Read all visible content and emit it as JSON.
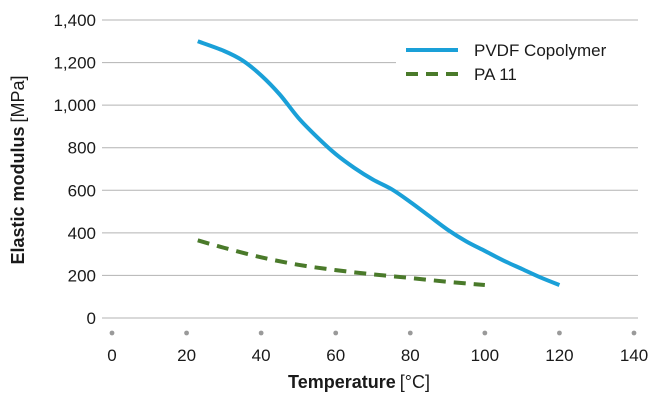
{
  "chart_data": {
    "type": "line",
    "xlabel_main": "Temperature",
    "xlabel_unit": "[°C]",
    "ylabel_main": "Elastic modulus",
    "ylabel_unit": "[MPa]",
    "xlim": [
      0,
      140
    ],
    "ylim": [
      0,
      1400
    ],
    "x_ticks": [
      0,
      20,
      40,
      60,
      80,
      100,
      120,
      140
    ],
    "x_tick_labels": [
      "0",
      "20",
      "40",
      "60",
      "80",
      "100",
      "120",
      "140"
    ],
    "y_ticks": [
      0,
      200,
      400,
      600,
      800,
      1000,
      1200,
      1400
    ],
    "y_tick_labels": [
      "0",
      "200",
      "400",
      "600",
      "800",
      "1,000",
      "1,200",
      "1,400"
    ],
    "grid": "horizontal",
    "legend_position": "top-right",
    "series": [
      {
        "name": "PVDF Copolymer",
        "color": "#1aa0d8",
        "style": "solid",
        "x": [
          23,
          30,
          35,
          40,
          45,
          50,
          55,
          60,
          65,
          70,
          75,
          80,
          85,
          90,
          95,
          100,
          105,
          110,
          115,
          120
        ],
        "y": [
          1300,
          1255,
          1210,
          1140,
          1050,
          940,
          850,
          770,
          705,
          650,
          605,
          545,
          480,
          415,
          360,
          315,
          270,
          230,
          190,
          155
        ]
      },
      {
        "name": "PA 11",
        "color": "#4a7a2a",
        "style": "dashed",
        "x": [
          23,
          30,
          40,
          50,
          60,
          70,
          80,
          90,
          100
        ],
        "y": [
          365,
          330,
          285,
          250,
          225,
          205,
          188,
          170,
          155
        ]
      }
    ]
  }
}
